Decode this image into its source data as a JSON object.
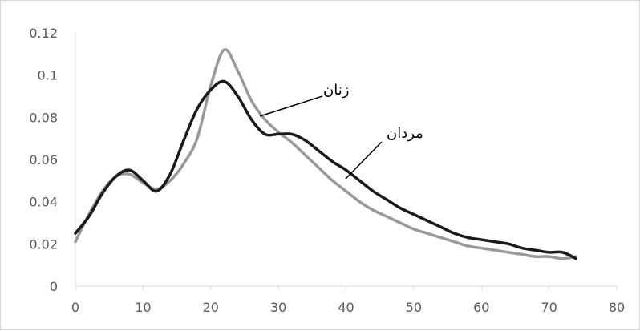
{
  "chart_data": {
    "type": "line",
    "title": "",
    "xlabel": "",
    "ylabel": "",
    "xlim": [
      0,
      80
    ],
    "ylim": [
      0,
      0.12
    ],
    "x_ticks": [
      "0",
      "10",
      "20",
      "30",
      "40",
      "50",
      "60",
      "70",
      "80"
    ],
    "y_ticks": [
      "0",
      "0.02",
      "0.04",
      "0.06",
      "0.08",
      "0.1",
      "0.12"
    ],
    "grid": false,
    "legend": "none",
    "series": [
      {
        "name": "مردان",
        "color": "#1a1a1a",
        "x": [
          0,
          2,
          4,
          6,
          8,
          10,
          12,
          14,
          16,
          18,
          20,
          22,
          24,
          26,
          28,
          30,
          32,
          34,
          36,
          38,
          40,
          42,
          44,
          46,
          48,
          50,
          52,
          54,
          56,
          58,
          60,
          62,
          64,
          66,
          68,
          70,
          72,
          74
        ],
        "values": [
          0.025,
          0.033,
          0.044,
          0.052,
          0.055,
          0.05,
          0.045,
          0.053,
          0.069,
          0.084,
          0.093,
          0.097,
          0.09,
          0.079,
          0.072,
          0.072,
          0.072,
          0.069,
          0.064,
          0.059,
          0.055,
          0.05,
          0.045,
          0.041,
          0.037,
          0.034,
          0.031,
          0.028,
          0.025,
          0.023,
          0.022,
          0.021,
          0.02,
          0.018,
          0.017,
          0.016,
          0.016,
          0.013
        ]
      },
      {
        "name": "زنان",
        "color": "#999999",
        "x": [
          0,
          2,
          4,
          6,
          8,
          10,
          12,
          14,
          16,
          18,
          20,
          22,
          24,
          26,
          28,
          30,
          32,
          34,
          36,
          38,
          40,
          42,
          44,
          46,
          48,
          50,
          52,
          54,
          56,
          58,
          60,
          62,
          64,
          66,
          68,
          70,
          72,
          74
        ],
        "values": [
          0.021,
          0.034,
          0.045,
          0.052,
          0.053,
          0.049,
          0.046,
          0.05,
          0.058,
          0.07,
          0.095,
          0.112,
          0.102,
          0.088,
          0.079,
          0.073,
          0.068,
          0.062,
          0.056,
          0.05,
          0.045,
          0.04,
          0.036,
          0.033,
          0.03,
          0.027,
          0.025,
          0.023,
          0.021,
          0.019,
          0.018,
          0.017,
          0.016,
          0.015,
          0.014,
          0.014,
          0.013,
          0.014
        ]
      }
    ],
    "annotations": [
      {
        "text": "زنان",
        "series": "زنان",
        "point_x": 26,
        "point_y": 0.08
      },
      {
        "text": "مردان",
        "series": "مردان",
        "point_x": 38,
        "point_y": 0.05
      }
    ]
  }
}
